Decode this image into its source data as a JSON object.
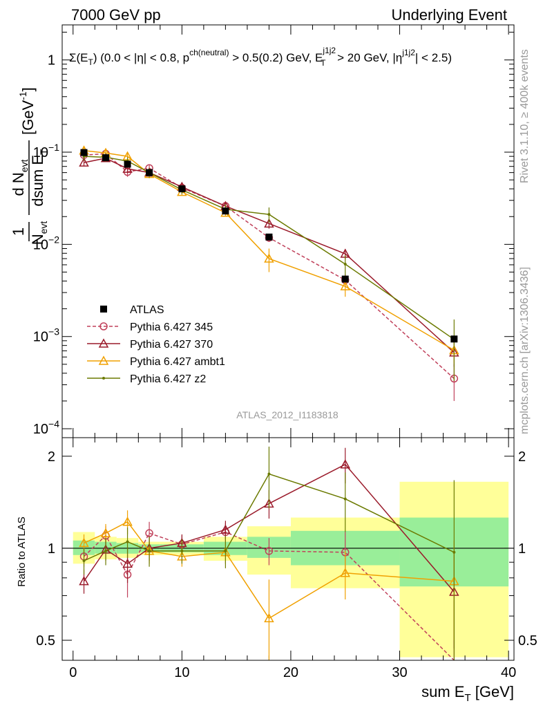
{
  "header": {
    "left": "7000 GeV pp",
    "right": "Underlying Event"
  },
  "side": {
    "rivet": "Rivet 3.1.10, ≥ 400k events",
    "mcplots": "mcplots.cern.ch [arXiv:1306.3436]"
  },
  "chart_data": {
    "type": "line",
    "title": "Σ(E_T) (0.0 < |η| < 0.8, p_T^ch(neutral) > 0.5(0.2) GeV, E_T^j1j2 > 20 GeV, |η^j1j2| < 2.5)",
    "title_parts": {
      "sigma": "Σ(E",
      "sub1": "T",
      "rest1": ") (0.0 < |η| < 0.8, p",
      "sup1": "ch(neutral)",
      "rest2": " > 0.5(0.2) GeV, E",
      "sup2": "j1j2",
      "sub2": "T",
      "rest3": " > 20 GeV, |η",
      "sup3": "j1j2",
      "rest4": "| < 2.5)"
    },
    "watermark": "ATLAS_2012_I1183818",
    "xlabel": "sum E_T [GeV]",
    "xlabel_parts": {
      "main": "sum E",
      "sub": "T",
      "unit": " [GeV]"
    },
    "ylabel": "1/N_evt dN_evt/dsum E_T [GeV^-1]",
    "ylabel_parts": {
      "one": "1",
      "n": "N",
      "evt": "evt",
      "dn": "d N",
      "dsum": "dsum E",
      "t": "T",
      "unit": "[GeV",
      "exp": "-1",
      "close": "]"
    },
    "ratio_ylabel": "Ratio to ATLAS",
    "xlim": [
      -1,
      40.5
    ],
    "ylim": [
      8e-05,
      2.4
    ],
    "ratio_ylim": [
      0.43,
      2.3
    ],
    "y_scale": "log",
    "ratio_scale": "log",
    "x_ticks": [
      "0",
      "10",
      "20",
      "30",
      "40"
    ],
    "y_ticks": [
      {
        "v": 1,
        "mant": "1",
        "exp": ""
      },
      {
        "v": 0.1,
        "mant": "10",
        "exp": "−1"
      },
      {
        "v": 0.01,
        "mant": "10",
        "exp": "−2"
      },
      {
        "v": 0.001,
        "mant": "10",
        "exp": "−3"
      },
      {
        "v": 0.0001,
        "mant": "10",
        "exp": "−4"
      }
    ],
    "ratio_ticks": [
      "0.5",
      "1",
      "2"
    ],
    "legend_position": "bottom-left",
    "data": {
      "name": "ATLAS",
      "x": [
        1,
        3,
        5,
        7,
        10,
        14,
        18,
        25,
        35
      ],
      "y": [
        0.099,
        0.087,
        0.074,
        0.06,
        0.04,
        0.023,
        0.012,
        0.0042,
        0.00094
      ]
    },
    "bands": [
      {
        "x0": 0,
        "x1": 2,
        "inner": [
          0.95,
          1.06
        ],
        "outer": [
          0.89,
          1.13
        ]
      },
      {
        "x0": 2,
        "x1": 4,
        "inner": [
          0.96,
          1.05
        ],
        "outer": [
          0.92,
          1.09
        ]
      },
      {
        "x0": 4,
        "x1": 6,
        "inner": [
          0.96,
          1.04
        ],
        "outer": [
          0.93,
          1.08
        ]
      },
      {
        "x0": 6,
        "x1": 8,
        "inner": [
          0.97,
          1.03
        ],
        "outer": [
          0.95,
          1.05
        ]
      },
      {
        "x0": 8,
        "x1": 12,
        "inner": [
          0.97,
          1.03
        ],
        "outer": [
          0.95,
          1.05
        ]
      },
      {
        "x0": 12,
        "x1": 16,
        "inner": [
          0.95,
          1.05
        ],
        "outer": [
          0.91,
          1.09
        ]
      },
      {
        "x0": 16,
        "x1": 20,
        "inner": [
          0.93,
          1.09
        ],
        "outer": [
          0.82,
          1.18
        ]
      },
      {
        "x0": 20,
        "x1": 30,
        "inner": [
          0.88,
          1.14
        ],
        "outer": [
          0.74,
          1.26
        ]
      },
      {
        "x0": 30,
        "x1": 40,
        "inner": [
          0.75,
          1.26
        ],
        "outer": [
          0.44,
          1.65
        ]
      }
    ],
    "series": [
      {
        "name": "Pythia 6.427 345",
        "color": "#c0405a",
        "marker": "circle",
        "dashed": true,
        "x": [
          1,
          3,
          5,
          7,
          10,
          14,
          18,
          25,
          35
        ],
        "y": [
          0.093,
          0.096,
          0.061,
          0.067,
          0.041,
          0.026,
          0.0118,
          0.0041,
          0.00035
        ],
        "ratio": [
          0.94,
          1.1,
          0.82,
          1.12,
          1.03,
          1.13,
          0.98,
          0.97,
          0.37
        ],
        "yerr": [
          0.008,
          0.008,
          0.007,
          0.006,
          0.003,
          0.002,
          0.0012,
          0.0006,
          0.00015
        ],
        "rerr": [
          0.07,
          0.08,
          0.13,
          0.1,
          0.07,
          0.08,
          0.1,
          0.16,
          0.3
        ]
      },
      {
        "name": "Pythia 6.427 370",
        "color": "#9a1a2a",
        "marker": "triangle",
        "dashed": false,
        "x": [
          1,
          3,
          5,
          7,
          10,
          14,
          18,
          25,
          35
        ],
        "y": [
          0.077,
          0.086,
          0.066,
          0.06,
          0.042,
          0.026,
          0.0168,
          0.0079,
          0.00067
        ],
        "ratio": [
          0.78,
          0.99,
          0.89,
          1.0,
          1.04,
          1.15,
          1.4,
          1.88,
          0.72
        ],
        "yerr": [
          0.007,
          0.008,
          0.007,
          0.006,
          0.003,
          0.002,
          0.002,
          0.001,
          0.0002
        ],
        "rerr": [
          0.07,
          0.08,
          0.12,
          0.09,
          0.07,
          0.08,
          0.15,
          0.25,
          0.25
        ]
      },
      {
        "name": "Pythia 6.427 ambt1",
        "color": "#f0a000",
        "marker": "triangle",
        "dashed": false,
        "x": [
          1,
          3,
          5,
          7,
          10,
          14,
          18,
          25,
          35
        ],
        "y": [
          0.104,
          0.098,
          0.09,
          0.058,
          0.037,
          0.022,
          0.007,
          0.0035,
          0.00071
        ],
        "ratio": [
          1.04,
          1.12,
          1.22,
          0.98,
          0.94,
          0.97,
          0.59,
          0.83,
          0.78
        ],
        "yerr": [
          0.008,
          0.008,
          0.008,
          0.006,
          0.003,
          0.002,
          0.002,
          0.0008,
          0.0002
        ],
        "rerr": [
          0.07,
          0.08,
          0.11,
          0.09,
          0.07,
          0.08,
          0.2,
          0.15,
          0.28
        ]
      },
      {
        "name": "Pythia 6.427 z2",
        "color": "#6b7a00",
        "marker": "dot",
        "dashed": false,
        "x": [
          1,
          3,
          5,
          7,
          10,
          14,
          18,
          25,
          35
        ],
        "y": [
          0.09,
          0.088,
          0.08,
          0.06,
          0.039,
          0.024,
          0.0211,
          0.0061,
          0.00093
        ],
        "ratio": [
          0.91,
          0.98,
          1.05,
          0.98,
          0.98,
          0.98,
          1.75,
          1.45,
          0.97
        ],
        "yerr": [
          0.009,
          0.009,
          0.008,
          0.007,
          0.004,
          0.003,
          0.004,
          0.0015,
          0.0006
        ],
        "rerr": [
          0.09,
          0.1,
          0.12,
          0.11,
          0.09,
          0.12,
          0.4,
          0.32,
          0.7
        ]
      }
    ]
  }
}
